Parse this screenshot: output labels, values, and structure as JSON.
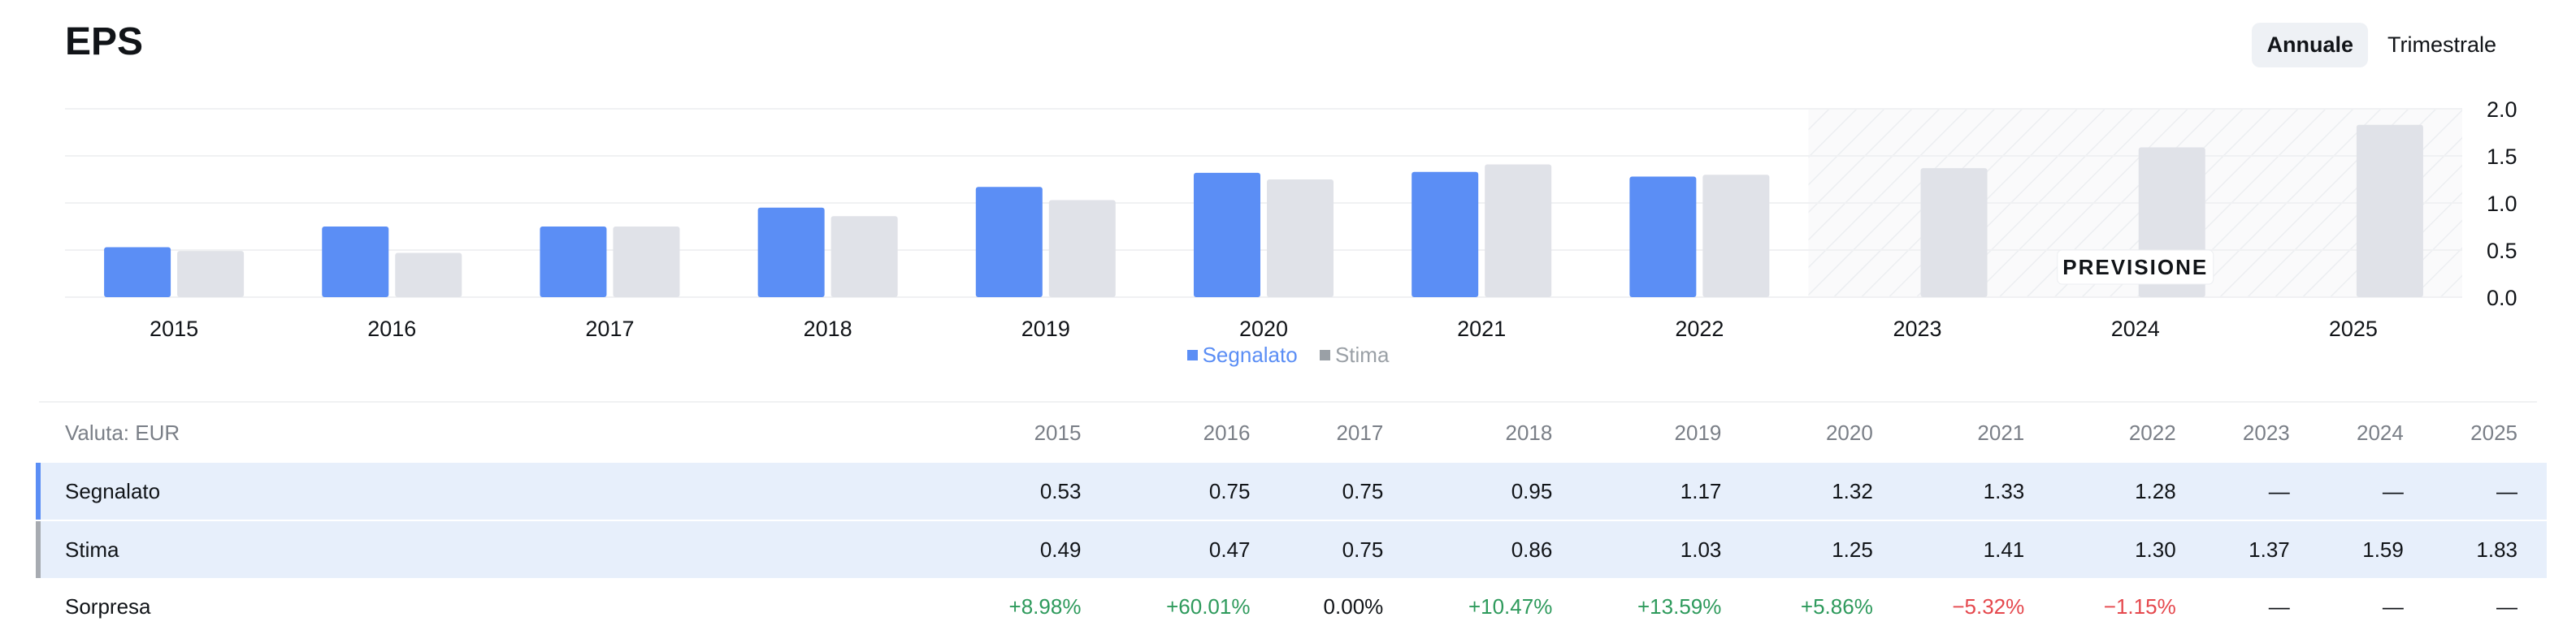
{
  "header": {
    "title": "EPS",
    "toggle": {
      "annual": "Annuale",
      "quarterly": "Trimestrale"
    }
  },
  "colors": {
    "reported": "#5b8ef5",
    "estimate": "#e0e2e8",
    "legend_estimate": "#9aa0a6",
    "positive": "#2e9a5c",
    "negative": "#e5484d"
  },
  "chart_data": {
    "type": "bar",
    "categories": [
      "2015",
      "2016",
      "2017",
      "2018",
      "2019",
      "2020",
      "2021",
      "2022",
      "2023",
      "2024",
      "2025"
    ],
    "series": [
      {
        "name": "Segnalato",
        "values": [
          0.53,
          0.75,
          0.75,
          0.95,
          1.17,
          1.32,
          1.33,
          1.28,
          null,
          null,
          null
        ]
      },
      {
        "name": "Stima",
        "values": [
          0.49,
          0.47,
          0.75,
          0.86,
          1.03,
          1.25,
          1.41,
          1.3,
          1.37,
          1.59,
          1.83
        ]
      }
    ],
    "yticks": [
      "0.0",
      "0.5",
      "1.0",
      "1.5",
      "2.0"
    ],
    "ylim": [
      0,
      2.0
    ],
    "forecast_label": "PREVISIONE",
    "forecast_start_index": 8,
    "legend": [
      "Segnalato",
      "Stima"
    ]
  },
  "table": {
    "currency_label": "Valuta: EUR",
    "years": [
      "2015",
      "2016",
      "2017",
      "2018",
      "2019",
      "2020",
      "2021",
      "2022",
      "2023",
      "2024",
      "2025"
    ],
    "rows": [
      {
        "label": "Segnalato",
        "values": [
          "0.53",
          "0.75",
          "0.75",
          "0.95",
          "1.17",
          "1.32",
          "1.33",
          "1.28",
          "—",
          "—",
          "—"
        ]
      },
      {
        "label": "Stima",
        "values": [
          "0.49",
          "0.47",
          "0.75",
          "0.86",
          "1.03",
          "1.25",
          "1.41",
          "1.30",
          "1.37",
          "1.59",
          "1.83"
        ]
      },
      {
        "label": "Sorpresa",
        "values": [
          "+8.98%",
          "+60.01%",
          "0.00%",
          "+10.47%",
          "+13.59%",
          "+5.86%",
          "−5.32%",
          "−1.15%",
          "—",
          "—",
          "—"
        ]
      }
    ]
  }
}
